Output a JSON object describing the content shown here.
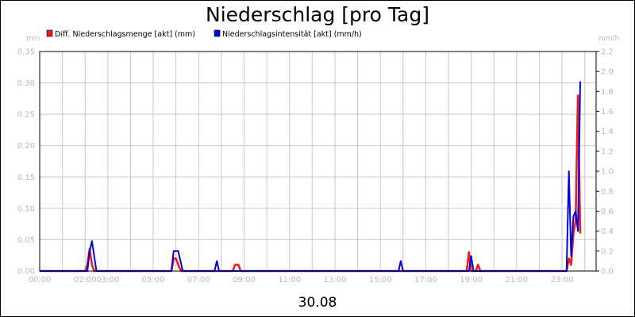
{
  "chart_data": {
    "type": "line",
    "title": "Niederschlag [pro Tag]",
    "date_label": "30.08",
    "left_unit": "mm",
    "right_unit": "mm/h",
    "x_ticks": [
      "00:00",
      "02:00",
      "03:00",
      "05:00",
      "07:00",
      "09:00",
      "11:00",
      "13:00",
      "15:00",
      "17:00",
      "19:00",
      "21:00",
      "23:00"
    ],
    "x_tick_hours": [
      0,
      2,
      3,
      5,
      7,
      9,
      11,
      13,
      15,
      17,
      19,
      21,
      23
    ],
    "x_range": [
      0,
      24.5
    ],
    "y_left_ticks": [
      "0.00",
      "0.05",
      "0.10",
      "0.15",
      "0.20",
      "0.25",
      "0.30",
      "0.35"
    ],
    "y_left_range": [
      0,
      0.35
    ],
    "y_right_ticks": [
      "0.0",
      "0.2",
      "0.4",
      "0.6",
      "0.8",
      "1.0",
      "1.2",
      "1.4",
      "1.6",
      "1.8",
      "2.0",
      "2.2"
    ],
    "y_right_range": [
      0,
      2.2
    ],
    "grid": true,
    "legend_position": "top",
    "series": [
      {
        "name": "Diff. Niederschlagsmenge [akt] (mm)",
        "color": "#ee1c1c",
        "axis": "left",
        "points": [
          [
            0,
            0
          ],
          [
            2.0,
            0
          ],
          [
            2.1,
            0.01
          ],
          [
            2.2,
            0.035
          ],
          [
            2.3,
            0.01
          ],
          [
            2.4,
            0
          ],
          [
            5.8,
            0
          ],
          [
            5.9,
            0.02
          ],
          [
            6.0,
            0.02
          ],
          [
            6.15,
            0.005
          ],
          [
            6.25,
            0
          ],
          [
            8.5,
            0
          ],
          [
            8.6,
            0.01
          ],
          [
            8.75,
            0.01
          ],
          [
            8.85,
            0
          ],
          [
            18.8,
            0
          ],
          [
            18.9,
            0.03
          ],
          [
            19.0,
            0
          ],
          [
            19.2,
            0
          ],
          [
            19.3,
            0.01
          ],
          [
            19.4,
            0
          ],
          [
            23.2,
            0
          ],
          [
            23.3,
            0.02
          ],
          [
            23.4,
            0.01
          ],
          [
            23.5,
            0.06
          ],
          [
            23.6,
            0.08
          ],
          [
            23.7,
            0.28
          ],
          [
            23.8,
            0.06
          ]
        ]
      },
      {
        "name": "Niederschlagsintensität [akt] (mm/h)",
        "color": "#0000e0",
        "axis": "right",
        "points": [
          [
            0,
            0
          ],
          [
            2.1,
            0
          ],
          [
            2.2,
            0.2
          ],
          [
            2.3,
            0.3
          ],
          [
            2.4,
            0.15
          ],
          [
            2.5,
            0
          ],
          [
            5.8,
            0
          ],
          [
            5.9,
            0.2
          ],
          [
            6.1,
            0.2
          ],
          [
            6.2,
            0.1
          ],
          [
            6.3,
            0
          ],
          [
            7.7,
            0
          ],
          [
            7.8,
            0.1
          ],
          [
            7.9,
            0
          ],
          [
            15.8,
            0
          ],
          [
            15.9,
            0.1
          ],
          [
            16.0,
            0
          ],
          [
            18.9,
            0
          ],
          [
            19.0,
            0.15
          ],
          [
            19.1,
            0
          ],
          [
            23.2,
            0
          ],
          [
            23.3,
            1.0
          ],
          [
            23.4,
            0.15
          ],
          [
            23.5,
            0.55
          ],
          [
            23.6,
            0.6
          ],
          [
            23.7,
            0.4
          ],
          [
            23.8,
            1.9
          ]
        ]
      }
    ]
  }
}
